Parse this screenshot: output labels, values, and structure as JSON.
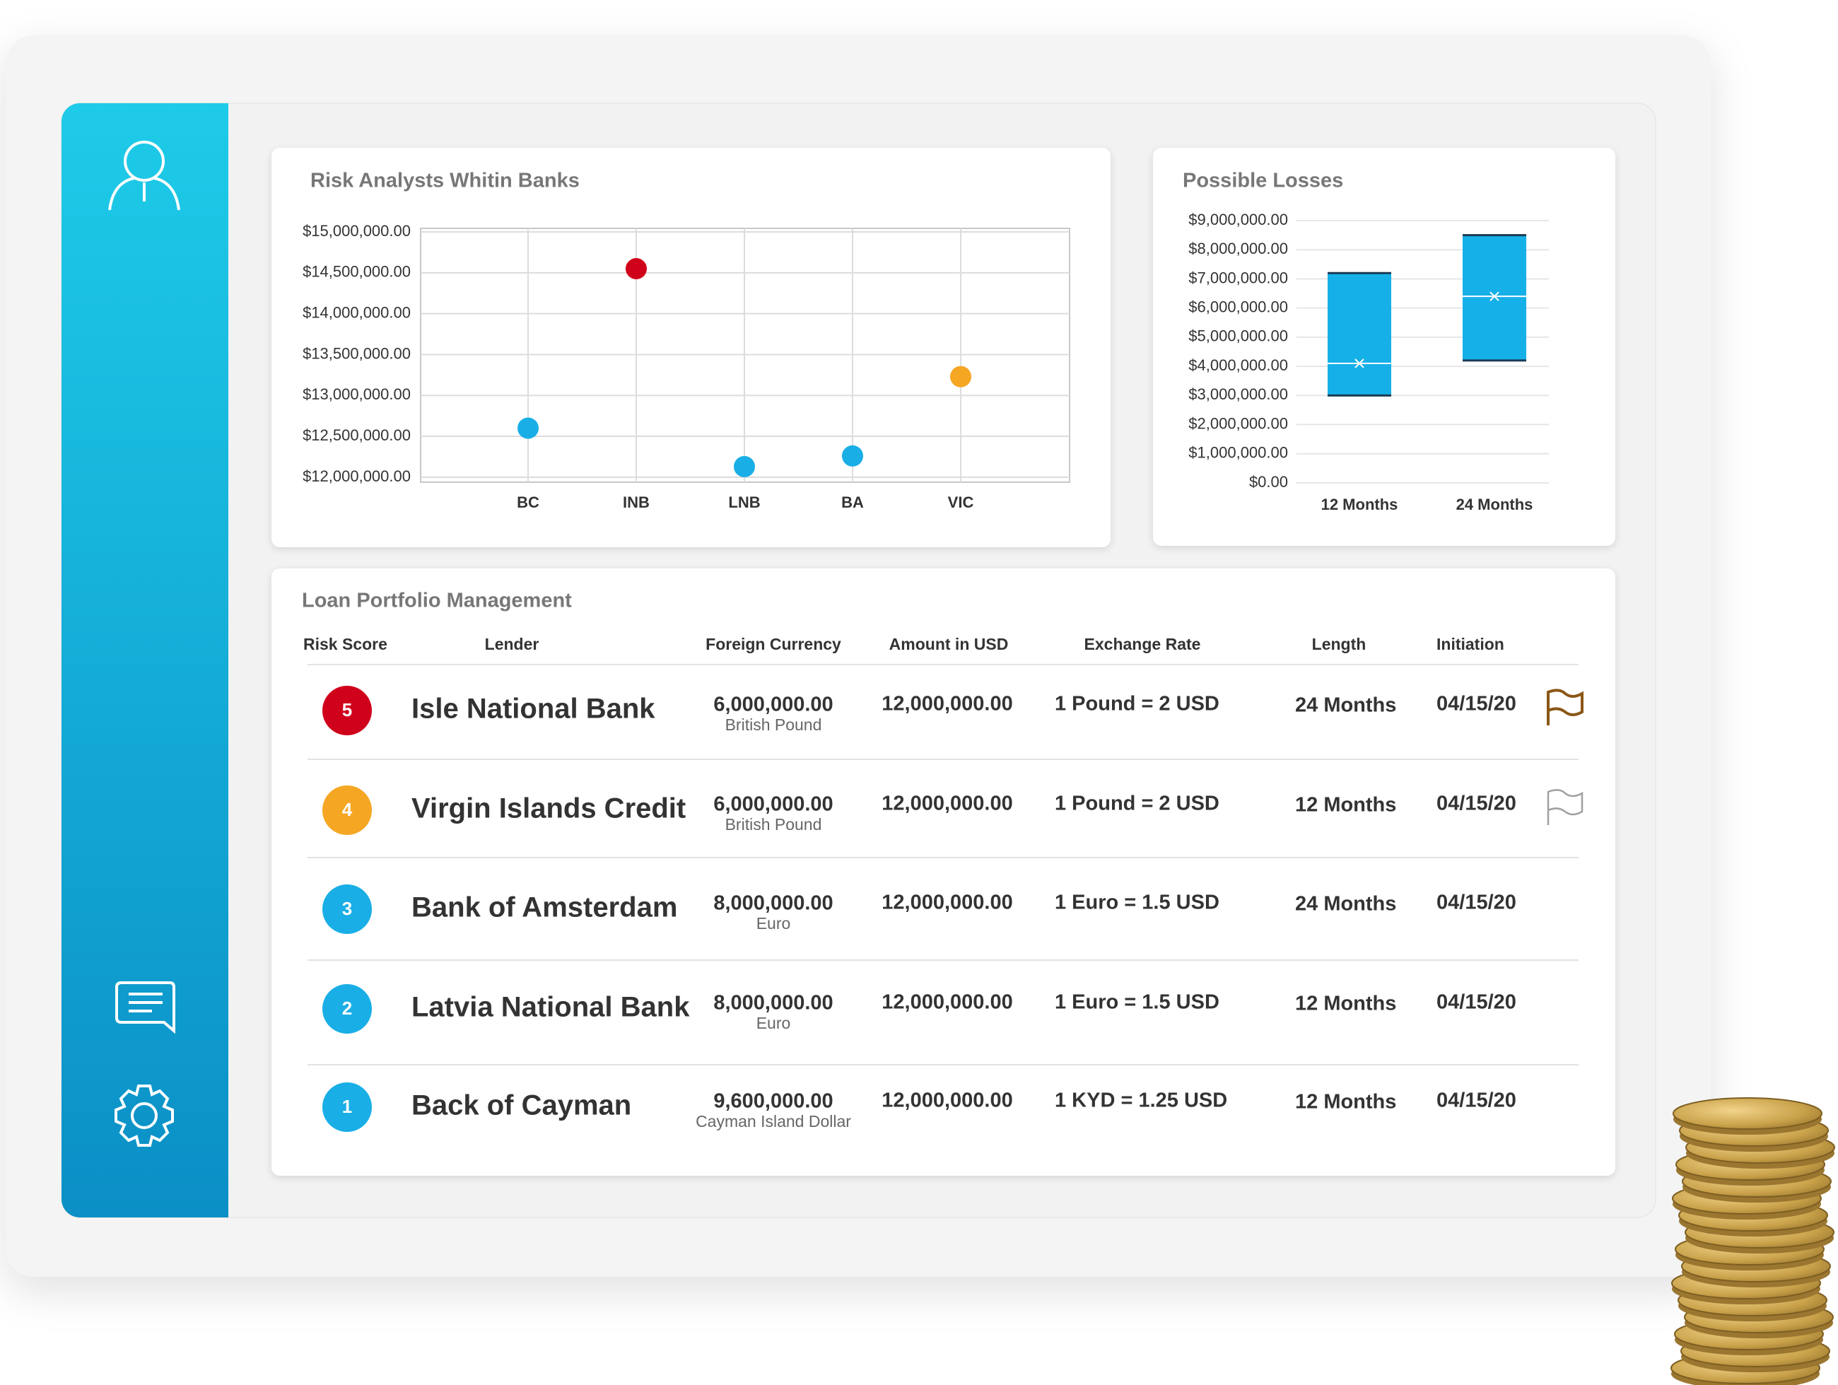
{
  "chart_data": [
    {
      "type": "scatter",
      "title": "Risk Analysts Whitin Banks",
      "categories": [
        "BC",
        "INB",
        "LNB",
        "BA",
        "VIC"
      ],
      "values": [
        12600000,
        14550000,
        12130000,
        12260000,
        13230000
      ],
      "colors": [
        "#19aee6",
        "#d0021b",
        "#19aee6",
        "#19aee6",
        "#f5a623"
      ],
      "ylim": [
        12000000,
        15000000
      ],
      "yticks": [
        {
          "value": 12000000,
          "label": "$12,000,000.00"
        },
        {
          "value": 12500000,
          "label": "$12,500,000.00"
        },
        {
          "value": 13000000,
          "label": "$13,000,000.00"
        },
        {
          "value": 13500000,
          "label": "$13,500,000.00"
        },
        {
          "value": 14000000,
          "label": "$14,000,000.00"
        },
        {
          "value": 14500000,
          "label": "$14,500,000.00"
        },
        {
          "value": 15000000,
          "label": "$15,000,000.00"
        }
      ],
      "grid": true
    },
    {
      "type": "box",
      "title": "Possible Losses",
      "categories": [
        "12 Months",
        "24 Months"
      ],
      "low": [
        3000000,
        4200000
      ],
      "high": [
        7200000,
        8500000
      ],
      "mean": [
        4100000,
        6400000
      ],
      "color": "#16b0e8",
      "ylim": [
        0,
        9000000
      ],
      "yticks": [
        {
          "value": 0,
          "label": "$0.00"
        },
        {
          "value": 1000000,
          "label": "$1,000,000.00"
        },
        {
          "value": 2000000,
          "label": "$2,000,000.00"
        },
        {
          "value": 3000000,
          "label": "$3,000,000.00"
        },
        {
          "value": 4000000,
          "label": "$4,000,000.00"
        },
        {
          "value": 5000000,
          "label": "$5,000,000.00"
        },
        {
          "value": 6000000,
          "label": "$6,000,000.00"
        },
        {
          "value": 7000000,
          "label": "$7,000,000.00"
        },
        {
          "value": 8000000,
          "label": "$8,000,000.00"
        },
        {
          "value": 9000000,
          "label": "$9,000,000.00"
        }
      ],
      "grid": true
    }
  ],
  "table": {
    "title": "Loan Portfolio Management",
    "headers": [
      "Risk Score",
      "Lender",
      "Foreign Currency",
      "Amount in USD",
      "Exchange Rate",
      "Length",
      "Initiation"
    ],
    "rows": [
      {
        "score": 5,
        "color": "#d0021b",
        "lender": "Isle National Bank",
        "foreign_amount": "6,000,000.00",
        "currency": "British Pound",
        "usd": "12,000,000.00",
        "rate": "1 Pound = 2 USD",
        "length": "24 Months",
        "initiation": "04/15/20",
        "flag": "marked"
      },
      {
        "score": 4,
        "color": "#f5a623",
        "lender": "Virgin Islands Credit",
        "foreign_amount": "6,000,000.00",
        "currency": "British Pound",
        "usd": "12,000,000.00",
        "rate": "1 Pound = 2 USD",
        "length": "12 Months",
        "initiation": "04/15/20",
        "flag": "unmarked"
      },
      {
        "score": 3,
        "color": "#19aee6",
        "lender": "Bank of Amsterdam",
        "foreign_amount": "8,000,000.00",
        "currency": "Euro",
        "usd": "12,000,000.00",
        "rate": "1 Euro = 1.5 USD",
        "length": "24 Months",
        "initiation": "04/15/20"
      },
      {
        "score": 2,
        "color": "#19aee6",
        "lender": "Latvia National Bank",
        "foreign_amount": "8,000,000.00",
        "currency": "Euro",
        "usd": "12,000,000.00",
        "rate": "1 Euro = 1.5 USD",
        "length": "12 Months",
        "initiation": "04/15/20"
      },
      {
        "score": 1,
        "color": "#19aee6",
        "lender": "Back of Cayman",
        "foreign_amount": "9,600,000.00",
        "currency": "Cayman Island Dollar",
        "usd": "12,000,000.00",
        "rate": "1 KYD = 1.25 USD",
        "length": "12 Months",
        "initiation": "04/15/20"
      }
    ]
  }
}
